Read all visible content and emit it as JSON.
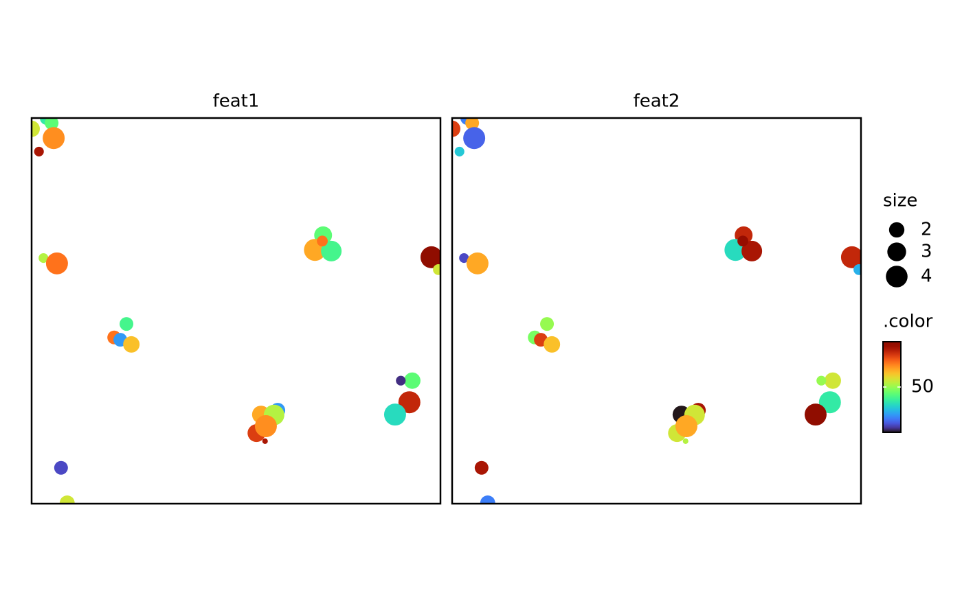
{
  "chart_data": [
    {
      "type": "scatter",
      "title": "feat1",
      "x": [
        0.0,
        0.37,
        0.49,
        0.54,
        0.18,
        0.29,
        0.62,
        7.13,
        6.93,
        7.33,
        7.11,
        9.78,
        9.95,
        2.32,
        2.02,
        2.17,
        2.44,
        9.31,
        9.03,
        9.24,
        8.89,
        6.02,
        5.61,
        5.93,
        5.5,
        5.73,
        5.71,
        0.72,
        0.87
      ],
      "y": [
        9.72,
        10.0,
        9.87,
        9.48,
        9.13,
        6.37,
        6.23,
        6.96,
        6.58,
        6.55,
        6.81,
        6.39,
        6.07,
        4.66,
        4.31,
        4.25,
        4.13,
        3.19,
        3.19,
        2.63,
        2.31,
        2.42,
        2.31,
        2.3,
        1.83,
        2.01,
        1.62,
        0.93,
        0.02
      ],
      "size": [
        2.3,
        1.6,
        1.6,
        4.1,
        0.8,
        0.8,
        4.1,
        2.7,
        4.1,
        3.6,
        1.0,
        4.1,
        1.0,
        1.6,
        1.6,
        1.6,
        2.3,
        2.3,
        0.8,
        4.1,
        4.1,
        1.9,
        2.7,
        3.6,
        2.7,
        4.1,
        0.26,
        1.6,
        1.9
      ],
      "color": [
        52,
        46,
        48,
        56,
        61,
        51,
        57,
        48,
        55,
        47,
        57,
        63,
        52,
        47,
        57,
        42,
        54,
        48,
        38,
        60,
        45,
        42,
        55,
        51,
        59,
        56,
        61,
        39,
        52
      ],
      "xlim": [
        0,
        10
      ],
      "ylim": [
        0,
        10
      ]
    },
    {
      "type": "scatter",
      "title": "feat2",
      "x": [
        0.0,
        0.37,
        0.49,
        0.54,
        0.18,
        0.29,
        0.62,
        7.13,
        6.93,
        7.33,
        7.11,
        9.78,
        9.95,
        2.32,
        2.02,
        2.17,
        2.44,
        9.31,
        9.03,
        9.24,
        8.89,
        6.02,
        5.61,
        5.93,
        5.5,
        5.73,
        5.71,
        0.72,
        0.87
      ],
      "y": [
        9.72,
        10.0,
        9.87,
        9.48,
        9.13,
        6.37,
        6.23,
        6.96,
        6.58,
        6.55,
        6.81,
        6.39,
        6.07,
        4.66,
        4.31,
        4.25,
        4.13,
        3.19,
        3.19,
        2.63,
        2.31,
        2.42,
        2.31,
        2.3,
        1.83,
        2.01,
        1.62,
        0.93,
        0.02
      ],
      "size": [
        2.3,
        1.6,
        1.6,
        4.1,
        0.8,
        0.8,
        4.1,
        2.7,
        4.1,
        3.6,
        1.0,
        4.1,
        1.0,
        1.6,
        1.6,
        1.6,
        2.3,
        2.3,
        0.8,
        4.1,
        4.1,
        1.9,
        2.7,
        3.6,
        2.7,
        4.1,
        0.26,
        1.6,
        1.9
      ],
      "color": [
        59,
        41,
        55,
        40,
        44,
        39,
        55,
        60,
        45,
        61,
        62,
        60,
        43,
        50,
        49,
        59,
        54,
        52,
        50,
        46,
        63,
        61,
        37,
        52,
        52,
        55,
        51,
        61,
        41
      ],
      "xlim": [
        0,
        10
      ],
      "ylim": [
        0,
        10
      ]
    }
  ],
  "legend": {
    "size_title": "size",
    "size_breaks": [
      2,
      3,
      4
    ],
    "color_title": ".color",
    "color_ticks": [
      50
    ],
    "color_lim": [
      37,
      63
    ]
  }
}
